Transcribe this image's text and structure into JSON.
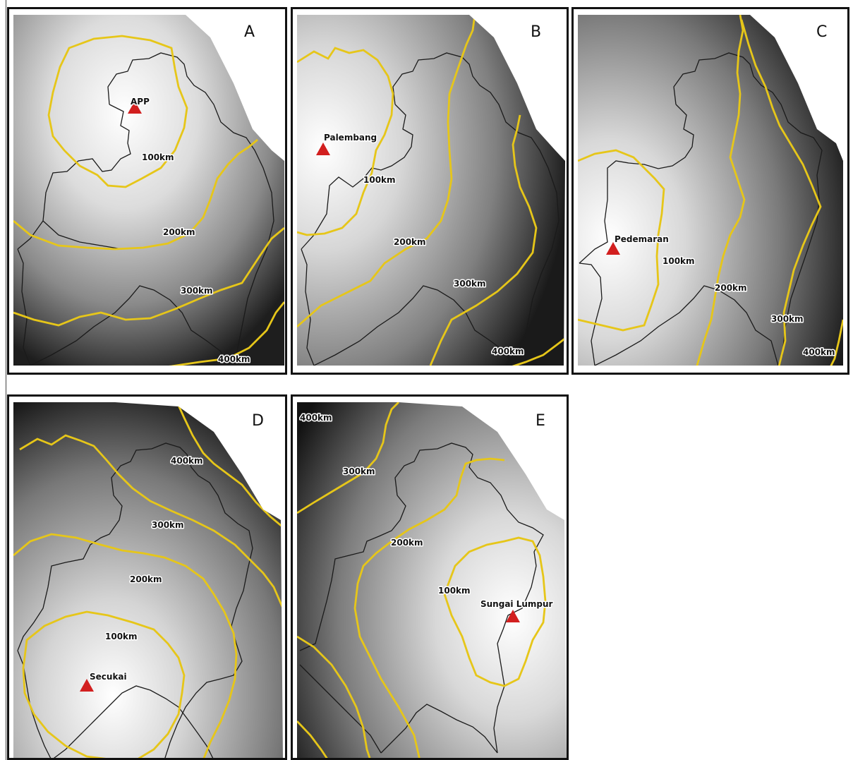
{
  "figure": {
    "colors": {
      "ring": "#e6c619",
      "boundary": "#1a1a1a",
      "site_marker": "#d21f1f",
      "terrain_light": "#ffffff",
      "terrain_dark": "#151515"
    },
    "panels": [
      {
        "letter": "A",
        "site": "APP",
        "marker_icon": "triangle-icon",
        "ring_labels": [
          "100km",
          "200km",
          "300km",
          "400km"
        ]
      },
      {
        "letter": "B",
        "site": "Palembang",
        "marker_icon": "triangle-icon",
        "ring_labels": [
          "100km",
          "200km",
          "300km",
          "400km"
        ]
      },
      {
        "letter": "C",
        "site": "Pedemaran",
        "marker_icon": "triangle-icon",
        "ring_labels": [
          "100km",
          "200km",
          "300km",
          "400km"
        ]
      },
      {
        "letter": "D",
        "site": "Secukai",
        "marker_icon": "triangle-icon",
        "ring_labels": [
          "100km",
          "200km",
          "300km",
          "400km"
        ]
      },
      {
        "letter": "E",
        "site": "Sungai Lumpur",
        "marker_icon": "triangle-icon",
        "ring_labels": [
          "100km",
          "200km",
          "300km",
          "400km"
        ]
      }
    ]
  }
}
